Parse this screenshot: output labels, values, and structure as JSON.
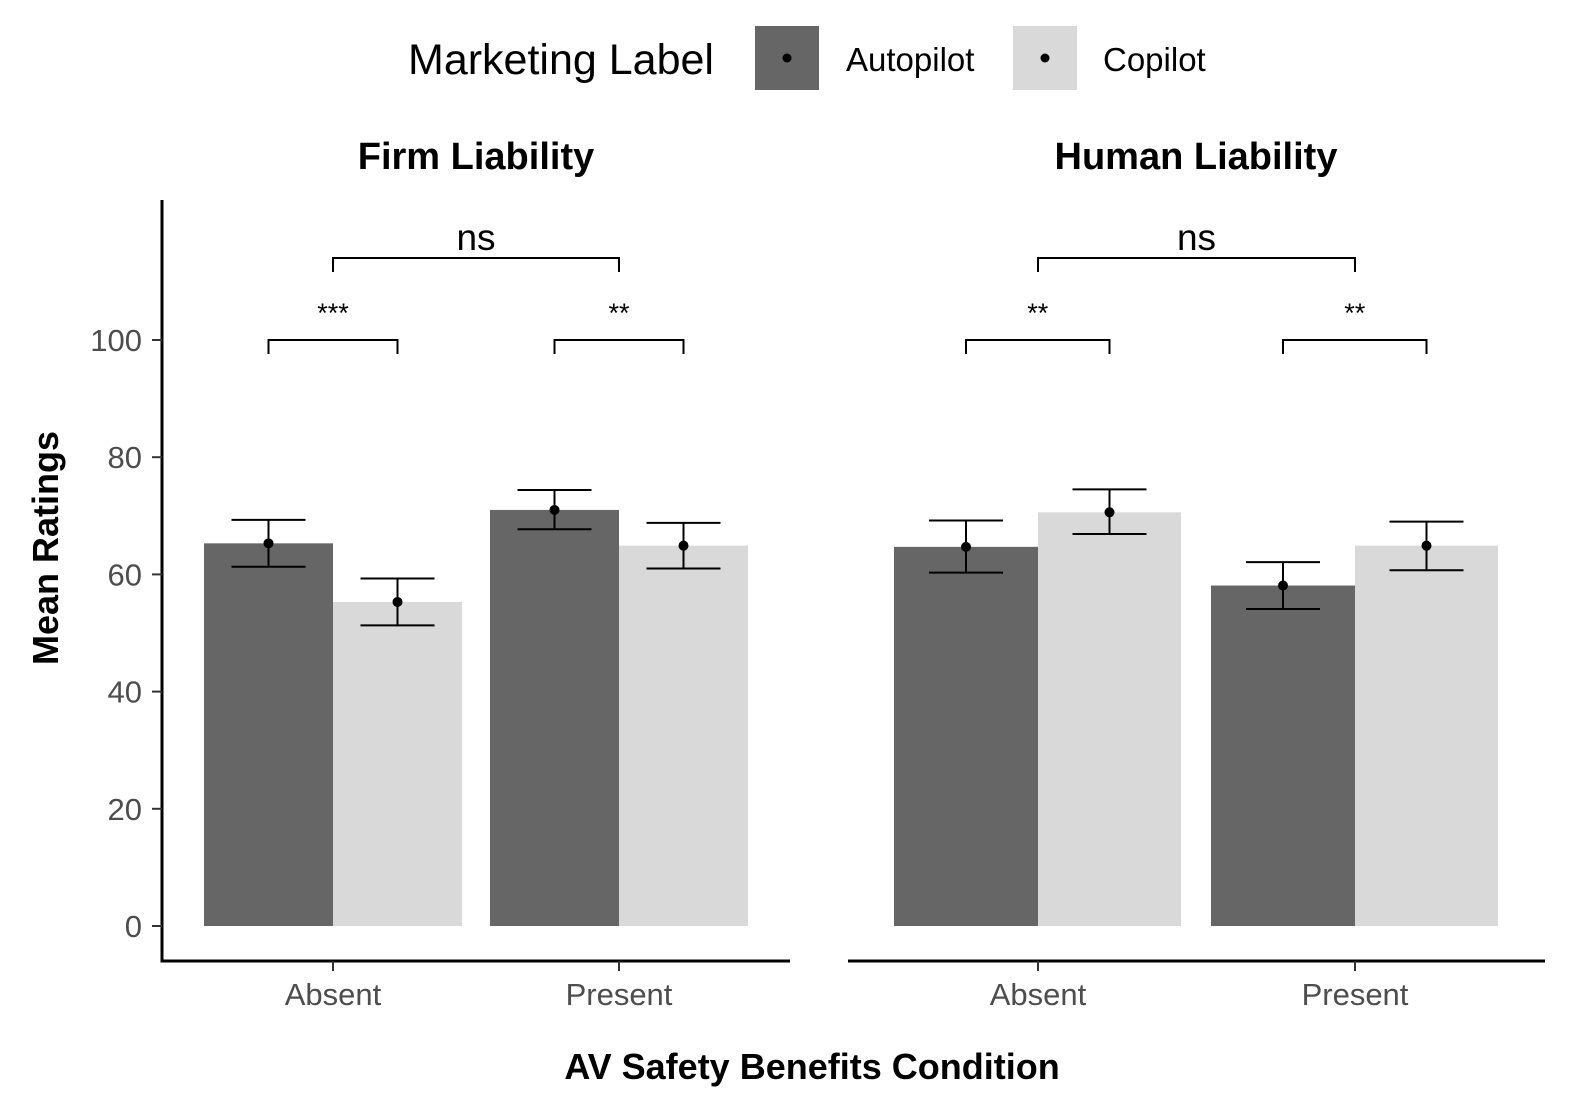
{
  "legend": {
    "title": "Marketing Label",
    "entries": [
      {
        "name": "Autopilot",
        "color": "#666666"
      },
      {
        "name": "Copilot",
        "color": "#d9d9d9"
      }
    ]
  },
  "x_axis_title": "AV Safety Benefits Condition",
  "y_axis_title": "Mean Ratings",
  "y_ticks": [
    "0",
    "20",
    "40",
    "60",
    "80",
    "100"
  ],
  "chart_data": [
    {
      "type": "bar",
      "title": "Firm Liability",
      "categories": [
        "Absent",
        "Present"
      ],
      "series": [
        {
          "name": "Autopilot",
          "values": [
            65.3,
            71.0
          ],
          "error_low": [
            61.3,
            67.7
          ],
          "error_high": [
            69.3,
            74.4
          ]
        },
        {
          "name": "Copilot",
          "values": [
            55.3,
            64.9
          ],
          "error_low": [
            51.3,
            61.0
          ],
          "error_high": [
            59.3,
            68.8
          ]
        }
      ],
      "ylim": [
        0,
        120
      ],
      "significance": [
        {
          "label": "***",
          "type": "within",
          "category": "Absent"
        },
        {
          "label": "**",
          "type": "within",
          "category": "Present"
        },
        {
          "label": "ns",
          "type": "between"
        }
      ]
    },
    {
      "type": "bar",
      "title": "Human Liability",
      "categories": [
        "Absent",
        "Present"
      ],
      "series": [
        {
          "name": "Autopilot",
          "values": [
            64.7,
            58.1
          ],
          "error_low": [
            60.3,
            54.1
          ],
          "error_high": [
            69.2,
            62.1
          ]
        },
        {
          "name": "Copilot",
          "values": [
            70.6,
            64.9
          ],
          "error_low": [
            66.9,
            60.7
          ],
          "error_high": [
            74.5,
            69.0
          ]
        }
      ],
      "ylim": [
        0,
        120
      ],
      "significance": [
        {
          "label": "**",
          "type": "within",
          "category": "Absent"
        },
        {
          "label": "**",
          "type": "within",
          "category": "Present"
        },
        {
          "label": "ns",
          "type": "between"
        }
      ]
    }
  ]
}
